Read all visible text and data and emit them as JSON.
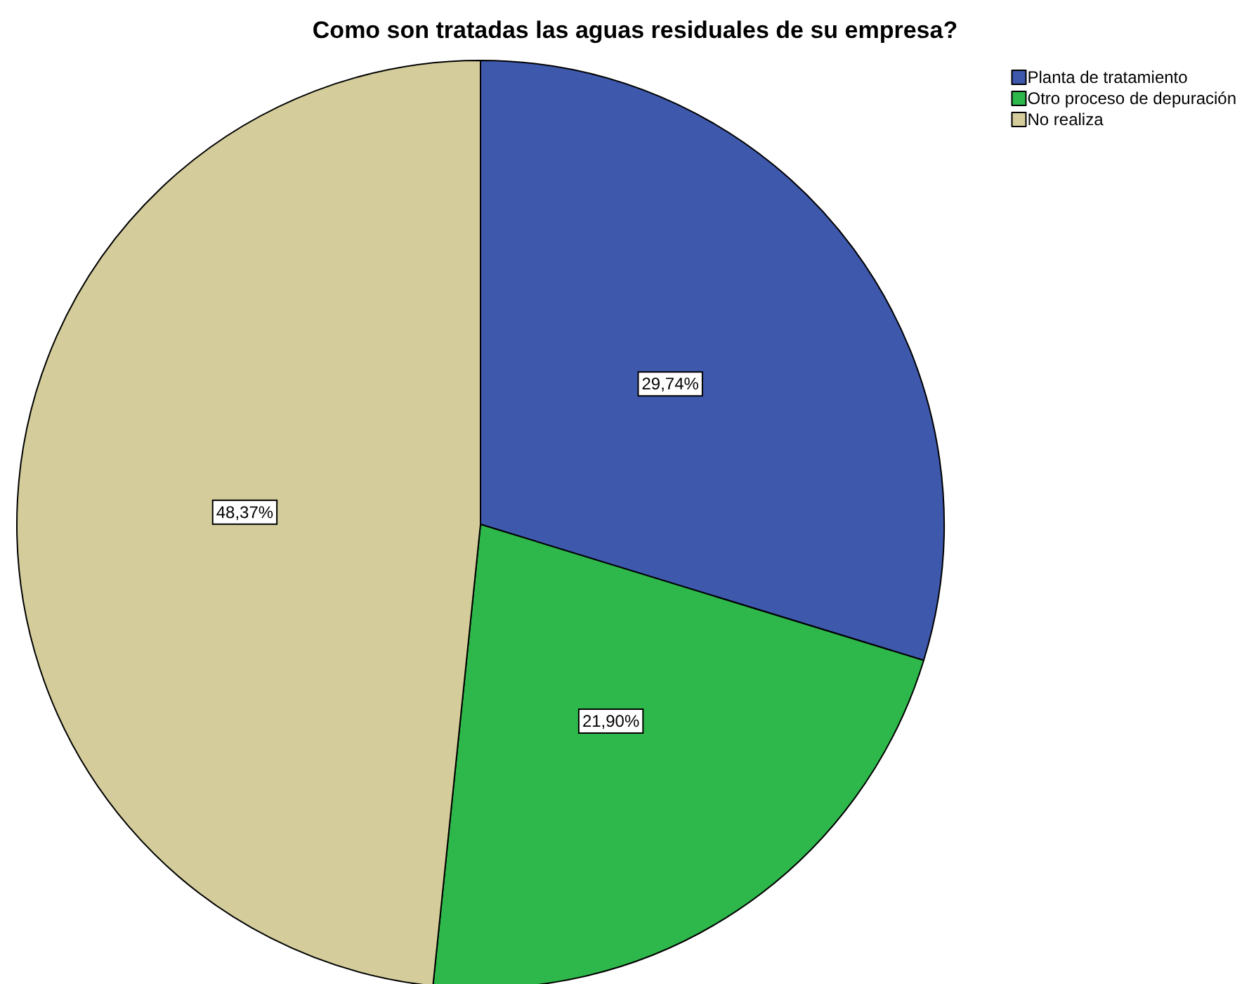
{
  "chart_data": {
    "type": "pie",
    "title": "Como son tratadas las aguas residuales de su empresa?",
    "categories": [
      "Planta de tratamiento",
      "Otro proceso de depuración",
      "No realiza"
    ],
    "values": [
      29.74,
      21.9,
      48.37
    ],
    "value_labels": [
      "29,74%",
      "21,90%",
      "48,37%"
    ],
    "colors": [
      "#3e58ac",
      "#2eb84b",
      "#d4cd9b"
    ],
    "legend": "top right"
  }
}
